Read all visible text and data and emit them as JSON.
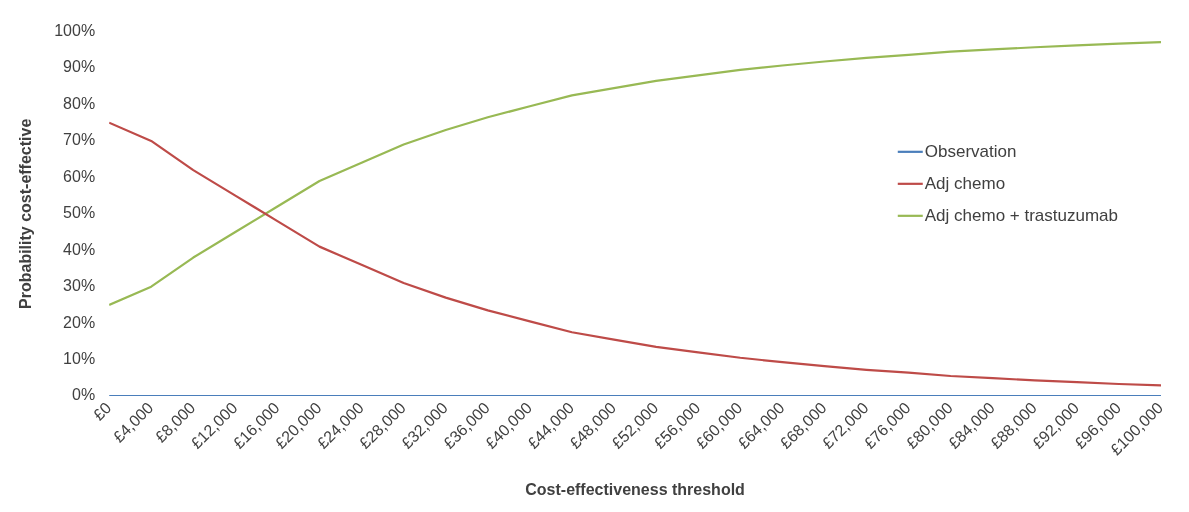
{
  "chart_data": {
    "type": "line",
    "xlabel": "Cost-effectiveness threshold",
    "ylabel": "Probability cost-effective",
    "x": [
      0,
      4000,
      8000,
      12000,
      16000,
      20000,
      24000,
      28000,
      32000,
      36000,
      40000,
      44000,
      48000,
      52000,
      56000,
      60000,
      64000,
      68000,
      72000,
      76000,
      80000,
      84000,
      88000,
      92000,
      96000,
      100000
    ],
    "xlim": [
      0,
      100000
    ],
    "xticks": [
      {
        "value": 0,
        "label": "£0"
      },
      {
        "value": 4000,
        "label": "£4,000"
      },
      {
        "value": 8000,
        "label": "£8,000"
      },
      {
        "value": 12000,
        "label": "£12,000"
      },
      {
        "value": 16000,
        "label": "£16,000"
      },
      {
        "value": 20000,
        "label": "£20,000"
      },
      {
        "value": 24000,
        "label": "£24,000"
      },
      {
        "value": 28000,
        "label": "£28,000"
      },
      {
        "value": 32000,
        "label": "£32,000"
      },
      {
        "value": 36000,
        "label": "£36,000"
      },
      {
        "value": 40000,
        "label": "£40,000"
      },
      {
        "value": 44000,
        "label": "£44,000"
      },
      {
        "value": 48000,
        "label": "£48,000"
      },
      {
        "value": 52000,
        "label": "£52,000"
      },
      {
        "value": 56000,
        "label": "£56,000"
      },
      {
        "value": 60000,
        "label": "£60,000"
      },
      {
        "value": 64000,
        "label": "£64,000"
      },
      {
        "value": 68000,
        "label": "£68,000"
      },
      {
        "value": 72000,
        "label": "£72,000"
      },
      {
        "value": 76000,
        "label": "£76,000"
      },
      {
        "value": 80000,
        "label": "£80,000"
      },
      {
        "value": 84000,
        "label": "£84,000"
      },
      {
        "value": 88000,
        "label": "£88,000"
      },
      {
        "value": 92000,
        "label": "£92,000"
      },
      {
        "value": 96000,
        "label": "£96,000"
      },
      {
        "value": 100000,
        "label": "£100,000"
      }
    ],
    "ylim": [
      0,
      100
    ],
    "yticks": [
      {
        "value": 0,
        "label": "0%"
      },
      {
        "value": 10,
        "label": "10%"
      },
      {
        "value": 20,
        "label": "20%"
      },
      {
        "value": 30,
        "label": "30%"
      },
      {
        "value": 40,
        "label": "40%"
      },
      {
        "value": 50,
        "label": "50%"
      },
      {
        "value": 60,
        "label": "60%"
      },
      {
        "value": 70,
        "label": "70%"
      },
      {
        "value": 80,
        "label": "80%"
      },
      {
        "value": 90,
        "label": "90%"
      },
      {
        "value": 100,
        "label": "100%"
      }
    ],
    "grid": false,
    "legend": "right",
    "marker": "none",
    "line_style": "solid",
    "series": [
      {
        "name": "Observation",
        "color": "#4a7ebb",
        "values": [
          0,
          0,
          0,
          0,
          0,
          0,
          0,
          0,
          0,
          0,
          0,
          0,
          0,
          0,
          0,
          0,
          0,
          0,
          0,
          0,
          0,
          0,
          0,
          0,
          0,
          0
        ]
      },
      {
        "name": "Adj chemo",
        "color": "#be4b48",
        "values": [
          75,
          70,
          62,
          55,
          48,
          41,
          36,
          31,
          27,
          23.5,
          20.5,
          17.5,
          15.5,
          13.5,
          12,
          10.5,
          9.3,
          8.2,
          7.2,
          6.4,
          5.5,
          4.9,
          4.3,
          3.8,
          3.3,
          2.9
        ]
      },
      {
        "name": "Adj chemo + trastuzumab",
        "color": "#98b954",
        "values": [
          25,
          30,
          38,
          45,
          52,
          59,
          64,
          69,
          73,
          76.5,
          79.5,
          82.5,
          84.5,
          86.5,
          88,
          89.5,
          90.7,
          91.8,
          92.8,
          93.6,
          94.5,
          95.1,
          95.7,
          96.2,
          96.7,
          97.1
        ]
      }
    ]
  }
}
